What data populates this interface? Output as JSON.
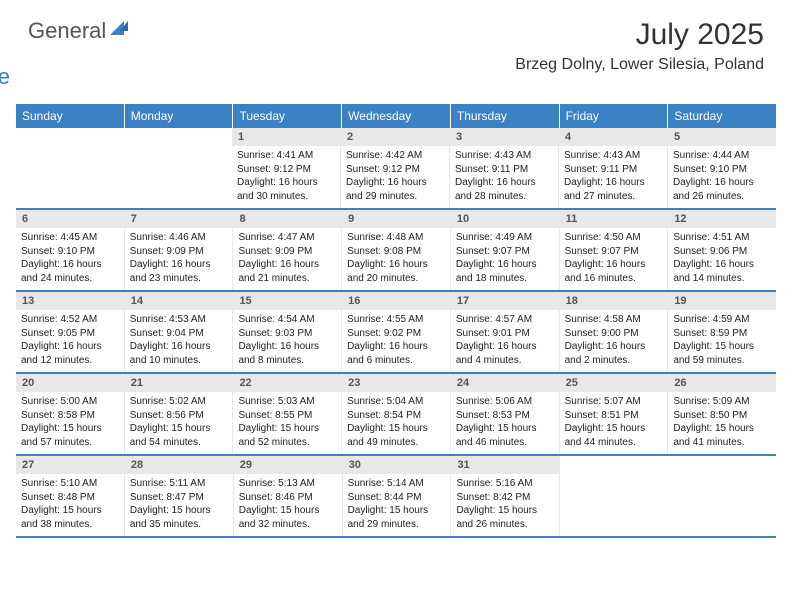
{
  "logo": {
    "general": "General",
    "blue": "Blue"
  },
  "title": "July 2025",
  "location": "Brzeg Dolny, Lower Silesia, Poland",
  "colors": {
    "accent": "#3b82c4",
    "header_text": "#ffffff",
    "daynum_bg": "#e8e8e8",
    "daynum_fg": "#555555",
    "body_text": "#222222",
    "border_light": "#e8e8e8"
  },
  "day_names": [
    "Sunday",
    "Monday",
    "Tuesday",
    "Wednesday",
    "Thursday",
    "Friday",
    "Saturday"
  ],
  "weeks": [
    [
      null,
      null,
      {
        "n": "1",
        "sunrise": "4:41 AM",
        "sunset": "9:12 PM",
        "daylight": "16 hours and 30 minutes."
      },
      {
        "n": "2",
        "sunrise": "4:42 AM",
        "sunset": "9:12 PM",
        "daylight": "16 hours and 29 minutes."
      },
      {
        "n": "3",
        "sunrise": "4:43 AM",
        "sunset": "9:11 PM",
        "daylight": "16 hours and 28 minutes."
      },
      {
        "n": "4",
        "sunrise": "4:43 AM",
        "sunset": "9:11 PM",
        "daylight": "16 hours and 27 minutes."
      },
      {
        "n": "5",
        "sunrise": "4:44 AM",
        "sunset": "9:10 PM",
        "daylight": "16 hours and 26 minutes."
      }
    ],
    [
      {
        "n": "6",
        "sunrise": "4:45 AM",
        "sunset": "9:10 PM",
        "daylight": "16 hours and 24 minutes."
      },
      {
        "n": "7",
        "sunrise": "4:46 AM",
        "sunset": "9:09 PM",
        "daylight": "16 hours and 23 minutes."
      },
      {
        "n": "8",
        "sunrise": "4:47 AM",
        "sunset": "9:09 PM",
        "daylight": "16 hours and 21 minutes."
      },
      {
        "n": "9",
        "sunrise": "4:48 AM",
        "sunset": "9:08 PM",
        "daylight": "16 hours and 20 minutes."
      },
      {
        "n": "10",
        "sunrise": "4:49 AM",
        "sunset": "9:07 PM",
        "daylight": "16 hours and 18 minutes."
      },
      {
        "n": "11",
        "sunrise": "4:50 AM",
        "sunset": "9:07 PM",
        "daylight": "16 hours and 16 minutes."
      },
      {
        "n": "12",
        "sunrise": "4:51 AM",
        "sunset": "9:06 PM",
        "daylight": "16 hours and 14 minutes."
      }
    ],
    [
      {
        "n": "13",
        "sunrise": "4:52 AM",
        "sunset": "9:05 PM",
        "daylight": "16 hours and 12 minutes."
      },
      {
        "n": "14",
        "sunrise": "4:53 AM",
        "sunset": "9:04 PM",
        "daylight": "16 hours and 10 minutes."
      },
      {
        "n": "15",
        "sunrise": "4:54 AM",
        "sunset": "9:03 PM",
        "daylight": "16 hours and 8 minutes."
      },
      {
        "n": "16",
        "sunrise": "4:55 AM",
        "sunset": "9:02 PM",
        "daylight": "16 hours and 6 minutes."
      },
      {
        "n": "17",
        "sunrise": "4:57 AM",
        "sunset": "9:01 PM",
        "daylight": "16 hours and 4 minutes."
      },
      {
        "n": "18",
        "sunrise": "4:58 AM",
        "sunset": "9:00 PM",
        "daylight": "16 hours and 2 minutes."
      },
      {
        "n": "19",
        "sunrise": "4:59 AM",
        "sunset": "8:59 PM",
        "daylight": "15 hours and 59 minutes."
      }
    ],
    [
      {
        "n": "20",
        "sunrise": "5:00 AM",
        "sunset": "8:58 PM",
        "daylight": "15 hours and 57 minutes."
      },
      {
        "n": "21",
        "sunrise": "5:02 AM",
        "sunset": "8:56 PM",
        "daylight": "15 hours and 54 minutes."
      },
      {
        "n": "22",
        "sunrise": "5:03 AM",
        "sunset": "8:55 PM",
        "daylight": "15 hours and 52 minutes."
      },
      {
        "n": "23",
        "sunrise": "5:04 AM",
        "sunset": "8:54 PM",
        "daylight": "15 hours and 49 minutes."
      },
      {
        "n": "24",
        "sunrise": "5:06 AM",
        "sunset": "8:53 PM",
        "daylight": "15 hours and 46 minutes."
      },
      {
        "n": "25",
        "sunrise": "5:07 AM",
        "sunset": "8:51 PM",
        "daylight": "15 hours and 44 minutes."
      },
      {
        "n": "26",
        "sunrise": "5:09 AM",
        "sunset": "8:50 PM",
        "daylight": "15 hours and 41 minutes."
      }
    ],
    [
      {
        "n": "27",
        "sunrise": "5:10 AM",
        "sunset": "8:48 PM",
        "daylight": "15 hours and 38 minutes."
      },
      {
        "n": "28",
        "sunrise": "5:11 AM",
        "sunset": "8:47 PM",
        "daylight": "15 hours and 35 minutes."
      },
      {
        "n": "29",
        "sunrise": "5:13 AM",
        "sunset": "8:46 PM",
        "daylight": "15 hours and 32 minutes."
      },
      {
        "n": "30",
        "sunrise": "5:14 AM",
        "sunset": "8:44 PM",
        "daylight": "15 hours and 29 minutes."
      },
      {
        "n": "31",
        "sunrise": "5:16 AM",
        "sunset": "8:42 PM",
        "daylight": "15 hours and 26 minutes."
      },
      null,
      null
    ]
  ],
  "labels": {
    "sunrise": "Sunrise:",
    "sunset": "Sunset:",
    "daylight": "Daylight:"
  }
}
